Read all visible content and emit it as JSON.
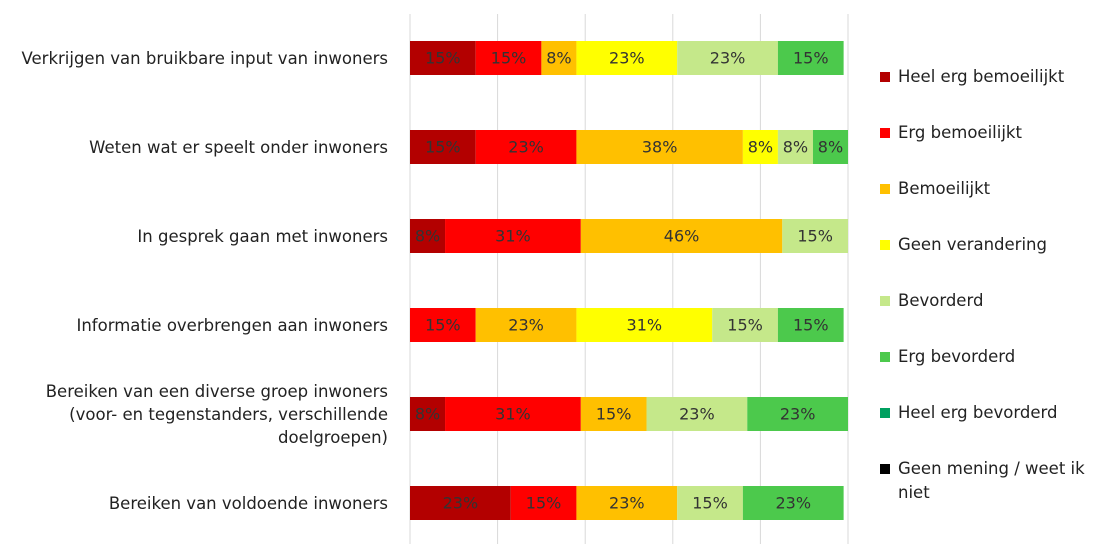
{
  "chart_data": {
    "type": "stacked-barh",
    "categories": [
      "Verkrijgen van bruikbare input van inwoners",
      "Weten wat er speelt onder inwoners",
      "In gesprek gaan met inwoners",
      "Informatie overbrengen aan inwoners",
      "Bereiken van een diverse groep inwoners (voor- en tegenstanders, verschillende doelgroepen)",
      "Bereiken van voldoende inwoners"
    ],
    "series": [
      {
        "name": "Heel erg bemoeilijkt",
        "color": "#b30000",
        "values": [
          15,
          15,
          8,
          null,
          8,
          23
        ],
        "value_labels": [
          "15%",
          "15%",
          "8%",
          null,
          "8%",
          "23%"
        ]
      },
      {
        "name": "Erg bemoeilijkt",
        "color": "#ff0000",
        "values": [
          15,
          23,
          31,
          15,
          31,
          15
        ],
        "value_labels": [
          "15%",
          "23%",
          "31%",
          "15%",
          "31%",
          "15%"
        ]
      },
      {
        "name": "Bemoeilijkt",
        "color": "#ffc000",
        "values": [
          8,
          38,
          46,
          23,
          15,
          23
        ],
        "value_labels": [
          "8%",
          "38%",
          "46%",
          "23%",
          "15%",
          "23%"
        ]
      },
      {
        "name": "Geen verandering",
        "color": "#ffff00",
        "values": [
          23,
          8,
          null,
          31,
          null,
          null
        ],
        "value_labels": [
          "23%",
          "8%",
          null,
          "31%",
          null,
          null
        ]
      },
      {
        "name": "Bevorderd",
        "color": "#c5e88a",
        "values": [
          23,
          8,
          15,
          15,
          23,
          15
        ],
        "value_labels": [
          "23%",
          "8%",
          "15%",
          "15%",
          "23%",
          "15%"
        ]
      },
      {
        "name": "Erg bevorderd",
        "color": "#4cc94c",
        "values": [
          15,
          8,
          null,
          15,
          23,
          23
        ],
        "value_labels": [
          "15%",
          "8%",
          null,
          "15%",
          "23%",
          "23%"
        ]
      },
      {
        "name": "Heel erg bevorderd",
        "color": "#00a060",
        "values": [
          null,
          null,
          null,
          null,
          null,
          null
        ],
        "value_labels": [
          null,
          null,
          null,
          null,
          null,
          null
        ]
      },
      {
        "name": "Geen mening / weet ik niet",
        "color": "#000000",
        "values": [
          null,
          null,
          null,
          null,
          null,
          null
        ],
        "value_labels": [
          null,
          null,
          null,
          null,
          null,
          null
        ]
      }
    ],
    "xlim": [
      0,
      100
    ],
    "xticks": [
      0,
      20,
      40,
      60,
      80,
      100
    ],
    "grid": true,
    "legend": "right"
  }
}
